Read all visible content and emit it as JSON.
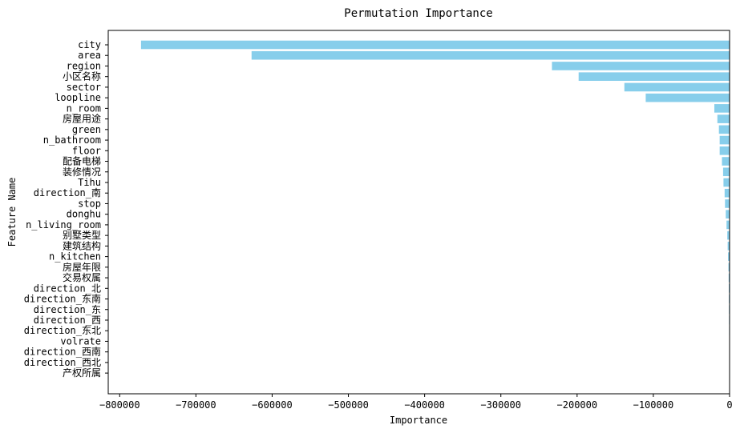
{
  "chart_data": {
    "type": "bar",
    "orientation": "horizontal",
    "title": "Permutation Importance",
    "xlabel": "Importance",
    "ylabel": "Feature Name",
    "xlim": [
      -815000,
      0
    ],
    "xticks": [
      -800000,
      -700000,
      -600000,
      -500000,
      -400000,
      -300000,
      -200000,
      -100000,
      0
    ],
    "bar_color": "#87CEEB",
    "grid": false,
    "categories": [
      "city",
      "area",
      "region",
      "小区名称",
      "sector",
      "loopline",
      "n_room",
      "房屋用途",
      "green",
      "n_bathroom",
      "floor",
      "配备电梯",
      "装修情况",
      "Tihu",
      "direction_南",
      "stop",
      "donghu",
      "n_living_room",
      "别墅类型",
      "建筑结构",
      "n_kitchen",
      "房屋年限",
      "交易权属",
      "direction_北",
      "direction_东南",
      "direction_东",
      "direction_西",
      "direction_东北",
      "volrate",
      "direction_西南",
      "direction_西北",
      "产权所属"
    ],
    "values": [
      -772000,
      -627000,
      -233000,
      -198000,
      -138000,
      -110000,
      -20000,
      -16000,
      -14000,
      -13000,
      -13000,
      -10000,
      -8500,
      -8000,
      -6500,
      -6000,
      -5000,
      -4000,
      -3000,
      -2500,
      -2000,
      -1500,
      -1200,
      -1000,
      -900,
      -800,
      -700,
      -600,
      -500,
      -300,
      -200,
      -100
    ]
  }
}
